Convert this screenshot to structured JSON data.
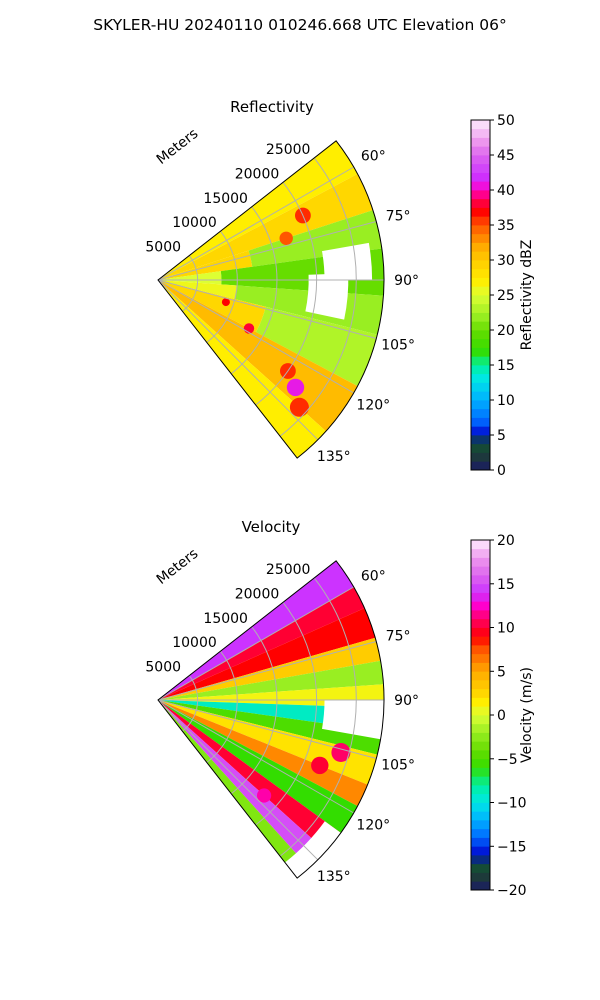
{
  "figure": {
    "suptitle": "SKYLER-HU  20240110  010246.668 UTC Elevation 06°"
  },
  "chart_data": [
    {
      "type": "heatmap",
      "subtype": "polar-sector (radar PPI)",
      "title": "Reflectivity",
      "radial_axis_label": "Meters",
      "radial_ticks": [
        "5000",
        "10000",
        "15000",
        "20000",
        "25000"
      ],
      "radial_max": 28500,
      "azimuth_range_deg": [
        52,
        142
      ],
      "azimuth_ticks": [
        "60°",
        "75°",
        "90°",
        "105°",
        "120°",
        "135°"
      ],
      "grid": true,
      "colorbar": {
        "label": "Reflectivity dBZ",
        "range": [
          0,
          50
        ],
        "ticks": [
          "0",
          "5",
          "10",
          "15",
          "20",
          "25",
          "30",
          "35",
          "40",
          "45",
          "50"
        ],
        "stops": [
          {
            "v": 0,
            "color": "#1a1a66"
          },
          {
            "v": 2,
            "color": "#1d3a3a"
          },
          {
            "v": 4,
            "color": "#115533"
          },
          {
            "v": 5,
            "color": "#0000cc"
          },
          {
            "v": 7,
            "color": "#0066ff"
          },
          {
            "v": 10,
            "color": "#00b0ff"
          },
          {
            "v": 13,
            "color": "#00e6e6"
          },
          {
            "v": 15,
            "color": "#00f0a0"
          },
          {
            "v": 17,
            "color": "#33dd00"
          },
          {
            "v": 20,
            "color": "#66dd00"
          },
          {
            "v": 22,
            "color": "#99ee22"
          },
          {
            "v": 25,
            "color": "#ddff33"
          },
          {
            "v": 27,
            "color": "#ffee00"
          },
          {
            "v": 30,
            "color": "#ffcc00"
          },
          {
            "v": 32,
            "color": "#ffaa00"
          },
          {
            "v": 35,
            "color": "#ff5500"
          },
          {
            "v": 37,
            "color": "#ff0000"
          },
          {
            "v": 39,
            "color": "#ff0066"
          },
          {
            "v": 40,
            "color": "#ff00cc"
          },
          {
            "v": 42,
            "color": "#cc33ff"
          },
          {
            "v": 45,
            "color": "#dd66ee"
          },
          {
            "v": 47,
            "color": "#ee99ee"
          },
          {
            "v": 50,
            "color": "#ffeeff"
          }
        ]
      },
      "bands": [
        {
          "az": [
            52,
            62
          ],
          "r": [
            0,
            28500
          ],
          "value": 27
        },
        {
          "az": [
            62,
            72
          ],
          "r": [
            0,
            28500
          ],
          "value": 29
        },
        {
          "az": [
            72,
            82
          ],
          "r": [
            0,
            12000
          ],
          "value": 29
        },
        {
          "az": [
            72,
            82
          ],
          "r": [
            12000,
            28500
          ],
          "value": 22
        },
        {
          "az": [
            82,
            94
          ],
          "r": [
            0,
            8000
          ],
          "value": 25
        },
        {
          "az": [
            82,
            94
          ],
          "r": [
            8000,
            28500
          ],
          "value": 20
        },
        {
          "az": [
            94,
            104
          ],
          "r": [
            0,
            10000
          ],
          "value": 26
        },
        {
          "az": [
            94,
            104
          ],
          "r": [
            10000,
            28500
          ],
          "value": 22
        },
        {
          "az": [
            104,
            118
          ],
          "r": [
            0,
            14000
          ],
          "value": 29
        },
        {
          "az": [
            104,
            118
          ],
          "r": [
            14000,
            28500
          ],
          "value": 23
        },
        {
          "az": [
            118,
            132
          ],
          "r": [
            0,
            28500
          ],
          "value": 31
        },
        {
          "az": [
            132,
            142
          ],
          "r": [
            0,
            28500
          ],
          "value": 27
        }
      ],
      "gaps": [
        {
          "az": [
            88,
            102
          ],
          "r": [
            19000,
            24000
          ]
        },
        {
          "az": [
            80,
            90
          ],
          "r": [
            21000,
            27000
          ]
        }
      ],
      "cells": [
        {
          "az": 66,
          "r": 20000,
          "value": 36
        },
        {
          "az": 72,
          "r": 17000,
          "value": 35
        },
        {
          "az": 108,
          "r": 9000,
          "value": 37
        },
        {
          "az": 118,
          "r": 13000,
          "value": 38
        },
        {
          "az": 125,
          "r": 20000,
          "value": 36
        },
        {
          "az": 128,
          "r": 22000,
          "value": 41
        },
        {
          "az": 132,
          "r": 24000,
          "value": 36
        }
      ]
    },
    {
      "type": "heatmap",
      "subtype": "polar-sector (radar PPI)",
      "title": "Velocity",
      "radial_axis_label": "Meters",
      "radial_ticks": [
        "5000",
        "10000",
        "15000",
        "20000",
        "25000"
      ],
      "radial_max": 28500,
      "azimuth_range_deg": [
        52,
        142
      ],
      "azimuth_ticks": [
        "60°",
        "75°",
        "90°",
        "105°",
        "120°",
        "135°"
      ],
      "grid": true,
      "colorbar": {
        "label": "Velocity (m/s)",
        "range": [
          -20,
          20
        ],
        "ticks": [
          "−20",
          "−15",
          "−10",
          "−5",
          "0",
          "5",
          "10",
          "15",
          "20"
        ],
        "stops": [
          {
            "v": -20,
            "color": "#1a1a66"
          },
          {
            "v": -18.5,
            "color": "#1d3a3a"
          },
          {
            "v": -17,
            "color": "#115533"
          },
          {
            "v": -16,
            "color": "#0000cc"
          },
          {
            "v": -14,
            "color": "#0066ff"
          },
          {
            "v": -12,
            "color": "#00b0ff"
          },
          {
            "v": -10,
            "color": "#00e6e6"
          },
          {
            "v": -8,
            "color": "#00f0a0"
          },
          {
            "v": -6,
            "color": "#33dd00"
          },
          {
            "v": -4,
            "color": "#66dd00"
          },
          {
            "v": -2,
            "color": "#99ee22"
          },
          {
            "v": 0,
            "color": "#ddff33"
          },
          {
            "v": 1.5,
            "color": "#ffee00"
          },
          {
            "v": 3,
            "color": "#ffcc00"
          },
          {
            "v": 5,
            "color": "#ffaa00"
          },
          {
            "v": 7.5,
            "color": "#ff5500"
          },
          {
            "v": 9,
            "color": "#ff0000"
          },
          {
            "v": 11,
            "color": "#ff0066"
          },
          {
            "v": 12.5,
            "color": "#ff00cc"
          },
          {
            "v": 14,
            "color": "#cc33ff"
          },
          {
            "v": 16,
            "color": "#dd66ee"
          },
          {
            "v": 18,
            "color": "#ee99ee"
          },
          {
            "v": 20,
            "color": "#ffeeff"
          }
        ]
      },
      "bands": [
        {
          "az": [
            52,
            60
          ],
          "r": [
            0,
            28500
          ],
          "value": 14
        },
        {
          "az": [
            60,
            66
          ],
          "r": [
            0,
            28500
          ],
          "value": 10
        },
        {
          "az": [
            66,
            74
          ],
          "r": [
            0,
            28500
          ],
          "value": 9
        },
        {
          "az": [
            74,
            80
          ],
          "r": [
            0,
            28500
          ],
          "value": 3
        },
        {
          "az": [
            80,
            86
          ],
          "r": [
            0,
            28500
          ],
          "value": -2
        },
        {
          "az": [
            86,
            92
          ],
          "r": [
            0,
            28500
          ],
          "value": 1
        },
        {
          "az": [
            92,
            98
          ],
          "r": [
            0,
            28500
          ],
          "value": -9
        },
        {
          "az": [
            98,
            104
          ],
          "r": [
            0,
            28500
          ],
          "value": -5
        },
        {
          "az": [
            104,
            112
          ],
          "r": [
            0,
            28500
          ],
          "value": 2
        },
        {
          "az": [
            112,
            118
          ],
          "r": [
            0,
            28500
          ],
          "value": 6
        },
        {
          "az": [
            118,
            126
          ],
          "r": [
            0,
            28500
          ],
          "value": -6
        },
        {
          "az": [
            126,
            132
          ],
          "r": [
            0,
            28500
          ],
          "value": 10
        },
        {
          "az": [
            132,
            138
          ],
          "r": [
            0,
            28500
          ],
          "value": 15
        },
        {
          "az": [
            138,
            142
          ],
          "r": [
            0,
            28500
          ],
          "value": -3
        }
      ],
      "gaps": [
        {
          "az": [
            90,
            100
          ],
          "r": [
            21000,
            28500
          ]
        },
        {
          "az": [
            126,
            142
          ],
          "r": [
            26000,
            28500
          ]
        }
      ],
      "cells": [
        {
          "az": 112,
          "r": 22000,
          "value": 10
        },
        {
          "az": 106,
          "r": 24000,
          "value": 11
        },
        {
          "az": 132,
          "r": 18000,
          "value": 12
        }
      ]
    }
  ]
}
